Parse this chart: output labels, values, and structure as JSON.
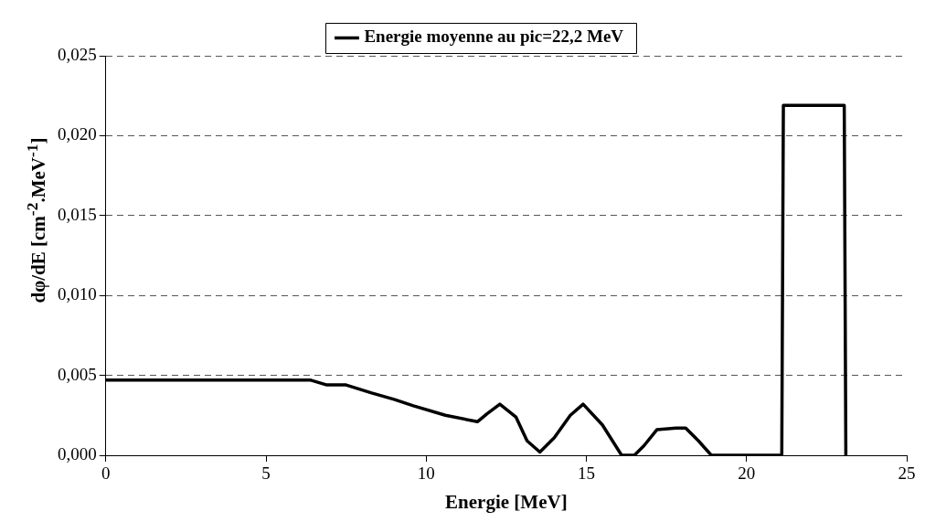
{
  "chart_data": {
    "type": "line",
    "xlabel": "Energie [MeV]",
    "ylabel": "dφ/dE [cm$^{-2}$.MeV$^{-1}$]",
    "xlim": [
      0,
      25
    ],
    "xticks": [
      0,
      5,
      10,
      15,
      20,
      25
    ],
    "ylim": [
      0,
      0.025
    ],
    "yticks": [
      {
        "value": 0,
        "label": "0,000"
      },
      {
        "value": 0.005,
        "label": "0,005"
      },
      {
        "value": 0.01,
        "label": "0,010"
      },
      {
        "value": 0.015,
        "label": "0,015"
      },
      {
        "value": 0.02,
        "label": "0,020"
      },
      {
        "value": 0.025,
        "label": "0,025"
      }
    ],
    "grid": "y",
    "legend": "top",
    "marker": "none",
    "line_style": "solid",
    "series": [
      {
        "name": "Energie moyenne au pic=22,2 MeV",
        "color": "#000000",
        "x": [
          0,
          6.4,
          6.9,
          7.5,
          8.3,
          9.0,
          9.6,
          10.6,
          11.6,
          11.9,
          12.3,
          12.8,
          13.15,
          13.55,
          14.0,
          14.5,
          14.9,
          15.5,
          16.1,
          16.5,
          16.8,
          17.2,
          17.8,
          18.1,
          18.5,
          18.9,
          21.1,
          21.15,
          23.05,
          23.1
        ],
        "values": [
          0.0047,
          0.0047,
          0.0044,
          0.0044,
          0.0039,
          0.0035,
          0.0031,
          0.0025,
          0.0021,
          0.0026,
          0.0032,
          0.0024,
          0.0009,
          0.0002,
          0.0011,
          0.0025,
          0.0032,
          0.0019,
          0.0,
          0.0,
          0.0006,
          0.0016,
          0.0017,
          0.0017,
          0.0009,
          0.0,
          0.0,
          0.0219,
          0.0219,
          0.0
        ]
      }
    ]
  }
}
